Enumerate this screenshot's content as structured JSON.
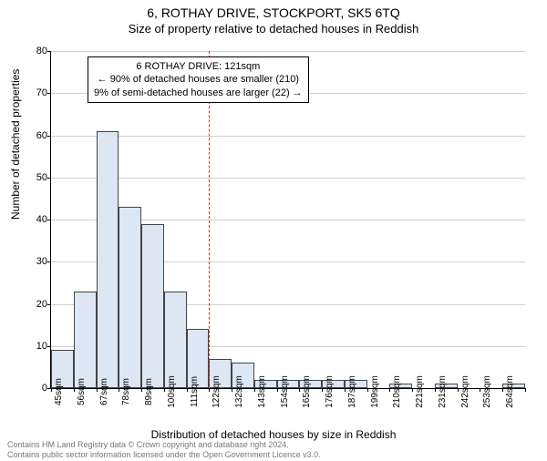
{
  "title": "6, ROTHAY DRIVE, STOCKPORT, SK5 6TQ",
  "subtitle": "Size of property relative to detached houses in Reddish",
  "chart": {
    "type": "histogram",
    "ylabel": "Number of detached properties",
    "xlabel": "Distribution of detached houses by size in Reddish",
    "ylim": [
      0,
      80
    ],
    "ytick_step": 10,
    "yticks": [
      0,
      10,
      20,
      30,
      40,
      50,
      60,
      70,
      80
    ],
    "xticks": [
      "45sqm",
      "56sqm",
      "67sqm",
      "78sqm",
      "89sqm",
      "100sqm",
      "111sqm",
      "122sqm",
      "132sqm",
      "143sqm",
      "154sqm",
      "165sqm",
      "176sqm",
      "187sqm",
      "199sqm",
      "210sqm",
      "221sqm",
      "231sqm",
      "242sqm",
      "253sqm",
      "264sqm"
    ],
    "values": [
      9,
      23,
      61,
      43,
      39,
      23,
      14,
      7,
      6,
      2,
      2,
      2,
      2,
      2,
      0,
      1,
      0,
      1,
      0,
      0,
      1
    ],
    "bar_color": "#dde6f3",
    "bar_border": "#444444",
    "background_color": "#ffffff",
    "grid_color": "#d0d0d0",
    "ref_line_index": 7,
    "ref_line_color": "#cc3333",
    "bar_count": 21
  },
  "info_box": {
    "line1": "6 ROTHAY DRIVE: 121sqm",
    "line2": "← 90% of detached houses are smaller (210)",
    "line3": "9% of semi-detached houses are larger (22) →"
  },
  "footer": {
    "line1": "Contains HM Land Registry data © Crown copyright and database right 2024.",
    "line2": "Contains public sector information licensed under the Open Government Licence v3.0."
  },
  "fonts": {
    "title_size": 14,
    "subtitle_size": 13,
    "axis_label_size": 12,
    "tick_size": 11,
    "info_size": 11,
    "footer_size": 9
  },
  "colors": {
    "text": "#000000",
    "footer_text": "#777777"
  }
}
